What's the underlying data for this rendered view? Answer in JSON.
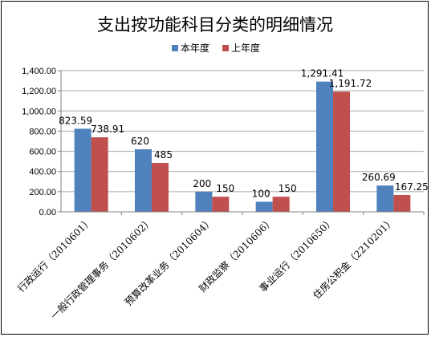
{
  "chart_data": {
    "type": "bar",
    "title": "支出按功能科目分类的明细情况",
    "categories": [
      "行政运行（2010601）",
      "一般行政管理事务（2010602）",
      "预算改革业务（2010604）",
      "财政监察（2010606）",
      "事业运行（2010650）",
      "住房公积金（2210201）"
    ],
    "series": [
      {
        "name": "本年度",
        "color": "#4f81bd",
        "values": [
          823.59,
          620,
          200,
          100,
          1291.41,
          260.69
        ],
        "labels": [
          "823.59",
          "620",
          "200",
          "100",
          "1,291.41",
          "260.69"
        ]
      },
      {
        "name": "上年度",
        "color": "#c0504d",
        "values": [
          738.91,
          485,
          150,
          150,
          1191.72,
          167.25
        ],
        "labels": [
          "738.91",
          "485",
          "150",
          "150",
          "1,191.72",
          "167.25"
        ]
      }
    ],
    "ylim": [
      0,
      1400
    ],
    "yticks": [
      "0.00",
      "200.00",
      "400.00",
      "600.00",
      "800.00",
      "1,000.00",
      "1,200.00",
      "1,400.00"
    ],
    "ytick_values": [
      0,
      200,
      400,
      600,
      800,
      1000,
      1200,
      1400
    ],
    "xlabel": "",
    "ylabel": "",
    "grid": true,
    "legend": "top"
  }
}
